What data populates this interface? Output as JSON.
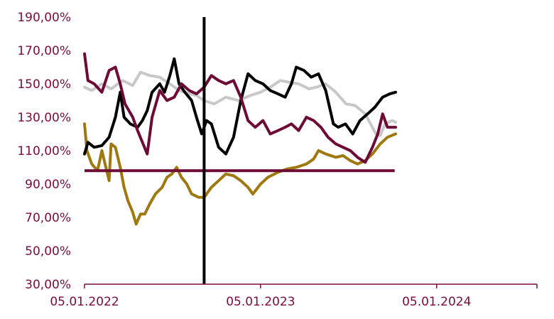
{
  "chart_data": {
    "type": "line",
    "title": "",
    "xlabel": "",
    "ylabel": "",
    "ylim": [
      30,
      190
    ],
    "xlim": [
      "2022-01-05",
      "2024-07-31"
    ],
    "y_ticks": [
      30,
      50,
      70,
      90,
      110,
      130,
      150,
      170,
      190
    ],
    "y_tick_labels": [
      "30,00%",
      "50,00%",
      "70,00%",
      "90,00%",
      "110,00%",
      "130,00%",
      "150,00%",
      "170,00%",
      "190,00%"
    ],
    "x_ticks": [
      "2022-01-05",
      "2023-01-05",
      "2024-01-05"
    ],
    "x_tick_labels": [
      "05.01.2022",
      "05.01.2023",
      "05.01.2024"
    ],
    "grid": false,
    "legend": "none",
    "reference_line": {
      "y": 98,
      "x_start": "2022-01-05",
      "x_end": "2023-10-10",
      "color": "#6d0a35"
    },
    "vertical_marker": {
      "x": "2022-09-10",
      "color": "#000000"
    },
    "colors": {
      "axis_text": "#7a0c3c",
      "axis_line": "#7a0c3c"
    },
    "series": [
      {
        "color": "#c8c8c8",
        "points": [
          [
            "2022-01-05",
            148
          ],
          [
            "2022-01-20",
            146
          ],
          [
            "2022-02-10",
            150
          ],
          [
            "2022-03-01",
            147
          ],
          [
            "2022-03-25",
            152
          ],
          [
            "2022-04-15",
            149
          ],
          [
            "2022-05-01",
            157
          ],
          [
            "2022-05-20",
            155
          ],
          [
            "2022-06-10",
            154
          ],
          [
            "2022-07-01",
            150
          ],
          [
            "2022-07-20",
            146
          ],
          [
            "2022-08-10",
            144
          ],
          [
            "2022-08-25",
            143
          ],
          [
            "2022-09-10",
            140
          ],
          [
            "2022-10-01",
            138
          ],
          [
            "2022-10-25",
            142
          ],
          [
            "2022-11-20",
            140
          ],
          [
            "2022-12-15",
            143
          ],
          [
            "2023-01-05",
            145
          ],
          [
            "2023-01-25",
            148
          ],
          [
            "2023-02-15",
            152
          ],
          [
            "2023-03-05",
            151
          ],
          [
            "2023-03-25",
            150
          ],
          [
            "2023-04-15",
            147
          ],
          [
            "2023-05-01",
            148
          ],
          [
            "2023-05-20",
            150
          ],
          [
            "2023-06-10",
            145
          ],
          [
            "2023-07-01",
            138
          ],
          [
            "2023-07-20",
            137
          ],
          [
            "2023-08-10",
            132
          ],
          [
            "2023-09-01",
            120
          ],
          [
            "2023-09-10",
            119
          ],
          [
            "2023-09-20",
            126
          ],
          [
            "2023-10-05",
            128
          ],
          [
            "2023-10-12",
            127
          ]
        ]
      },
      {
        "color": "#a07810",
        "points": [
          [
            "2022-01-05",
            126
          ],
          [
            "2022-01-10",
            110
          ],
          [
            "2022-01-20",
            102
          ],
          [
            "2022-02-01",
            98
          ],
          [
            "2022-02-10",
            110
          ],
          [
            "2022-02-25",
            92
          ],
          [
            "2022-03-01",
            114
          ],
          [
            "2022-03-10",
            112
          ],
          [
            "2022-03-20",
            100
          ],
          [
            "2022-03-28",
            88
          ],
          [
            "2022-04-05",
            80
          ],
          [
            "2022-04-15",
            73
          ],
          [
            "2022-04-22",
            66
          ],
          [
            "2022-05-01",
            72
          ],
          [
            "2022-05-10",
            72
          ],
          [
            "2022-05-20",
            78
          ],
          [
            "2022-06-01",
            84
          ],
          [
            "2022-06-15",
            88
          ],
          [
            "2022-06-25",
            94
          ],
          [
            "2022-07-05",
            96
          ],
          [
            "2022-07-15",
            100
          ],
          [
            "2022-07-25",
            94
          ],
          [
            "2022-08-05",
            90
          ],
          [
            "2022-08-15",
            84
          ],
          [
            "2022-08-30",
            82
          ],
          [
            "2022-09-10",
            82
          ],
          [
            "2022-09-25",
            88
          ],
          [
            "2022-10-10",
            92
          ],
          [
            "2022-10-25",
            96
          ],
          [
            "2022-11-10",
            95
          ],
          [
            "2022-11-25",
            92
          ],
          [
            "2022-12-10",
            88
          ],
          [
            "2022-12-20",
            84
          ],
          [
            "2023-01-05",
            90
          ],
          [
            "2023-01-20",
            94
          ],
          [
            "2023-02-10",
            97
          ],
          [
            "2023-03-01",
            99
          ],
          [
            "2023-03-20",
            100
          ],
          [
            "2023-04-10",
            102
          ],
          [
            "2023-04-25",
            105
          ],
          [
            "2023-05-05",
            110
          ],
          [
            "2023-05-20",
            108
          ],
          [
            "2023-06-10",
            106
          ],
          [
            "2023-06-25",
            107
          ],
          [
            "2023-07-10",
            104
          ],
          [
            "2023-07-25",
            102
          ],
          [
            "2023-08-10",
            104
          ],
          [
            "2023-08-25",
            108
          ],
          [
            "2023-09-10",
            114
          ],
          [
            "2023-09-25",
            118
          ],
          [
            "2023-10-12",
            120
          ]
        ]
      },
      {
        "color": "#000000",
        "points": [
          [
            "2022-01-05",
            108
          ],
          [
            "2022-01-12",
            115
          ],
          [
            "2022-01-25",
            112
          ],
          [
            "2022-02-10",
            113
          ],
          [
            "2022-02-25",
            118
          ],
          [
            "2022-03-10",
            130
          ],
          [
            "2022-03-20",
            145
          ],
          [
            "2022-03-28",
            130
          ],
          [
            "2022-04-10",
            126
          ],
          [
            "2022-04-25",
            124
          ],
          [
            "2022-05-05",
            128
          ],
          [
            "2022-05-15",
            134
          ],
          [
            "2022-05-25",
            145
          ],
          [
            "2022-06-10",
            150
          ],
          [
            "2022-06-20",
            145
          ],
          [
            "2022-07-01",
            155
          ],
          [
            "2022-07-10",
            165
          ],
          [
            "2022-07-20",
            150
          ],
          [
            "2022-08-01",
            145
          ],
          [
            "2022-08-15",
            140
          ],
          [
            "2022-08-25",
            130
          ],
          [
            "2022-09-05",
            120
          ],
          [
            "2022-09-15",
            128
          ],
          [
            "2022-09-25",
            126
          ],
          [
            "2022-10-10",
            112
          ],
          [
            "2022-10-25",
            108
          ],
          [
            "2022-11-10",
            118
          ],
          [
            "2022-11-25",
            140
          ],
          [
            "2022-12-10",
            156
          ],
          [
            "2022-12-25",
            152
          ],
          [
            "2023-01-10",
            150
          ],
          [
            "2023-01-25",
            146
          ],
          [
            "2023-02-10",
            144
          ],
          [
            "2023-02-25",
            142
          ],
          [
            "2023-03-10",
            150
          ],
          [
            "2023-03-20",
            160
          ],
          [
            "2023-04-05",
            158
          ],
          [
            "2023-04-20",
            154
          ],
          [
            "2023-05-05",
            156
          ],
          [
            "2023-05-20",
            146
          ],
          [
            "2023-06-05",
            126
          ],
          [
            "2023-06-15",
            124
          ],
          [
            "2023-06-30",
            126
          ],
          [
            "2023-07-15",
            120
          ],
          [
            "2023-07-30",
            128
          ],
          [
            "2023-08-15",
            132
          ],
          [
            "2023-08-30",
            136
          ],
          [
            "2023-09-15",
            142
          ],
          [
            "2023-09-30",
            144
          ],
          [
            "2023-10-12",
            145
          ]
        ]
      },
      {
        "color": "#6d0a35",
        "points": [
          [
            "2022-01-05",
            168
          ],
          [
            "2022-01-12",
            152
          ],
          [
            "2022-01-25",
            150
          ],
          [
            "2022-02-10",
            145
          ],
          [
            "2022-02-25",
            158
          ],
          [
            "2022-03-10",
            160
          ],
          [
            "2022-03-20",
            150
          ],
          [
            "2022-03-30",
            138
          ],
          [
            "2022-04-15",
            130
          ],
          [
            "2022-04-25",
            122
          ],
          [
            "2022-05-05",
            115
          ],
          [
            "2022-05-15",
            108
          ],
          [
            "2022-05-25",
            130
          ],
          [
            "2022-06-10",
            146
          ],
          [
            "2022-06-25",
            140
          ],
          [
            "2022-07-10",
            142
          ],
          [
            "2022-07-25",
            150
          ],
          [
            "2022-08-10",
            146
          ],
          [
            "2022-08-25",
            144
          ],
          [
            "2022-09-10",
            148
          ],
          [
            "2022-09-25",
            155
          ],
          [
            "2022-10-10",
            152
          ],
          [
            "2022-10-25",
            150
          ],
          [
            "2022-11-10",
            152
          ],
          [
            "2022-11-25",
            142
          ],
          [
            "2022-12-10",
            128
          ],
          [
            "2022-12-25",
            124
          ],
          [
            "2023-01-10",
            128
          ],
          [
            "2023-01-25",
            120
          ],
          [
            "2023-02-10",
            122
          ],
          [
            "2023-02-25",
            124
          ],
          [
            "2023-03-10",
            126
          ],
          [
            "2023-03-25",
            122
          ],
          [
            "2023-04-10",
            130
          ],
          [
            "2023-04-25",
            128
          ],
          [
            "2023-05-10",
            124
          ],
          [
            "2023-05-25",
            118
          ],
          [
            "2023-06-10",
            114
          ],
          [
            "2023-06-25",
            112
          ],
          [
            "2023-07-10",
            110
          ],
          [
            "2023-07-25",
            106
          ],
          [
            "2023-08-10",
            103
          ],
          [
            "2023-08-25",
            112
          ],
          [
            "2023-09-05",
            120
          ],
          [
            "2023-09-15",
            132
          ],
          [
            "2023-09-25",
            124
          ],
          [
            "2023-10-12",
            124
          ]
        ]
      }
    ]
  }
}
